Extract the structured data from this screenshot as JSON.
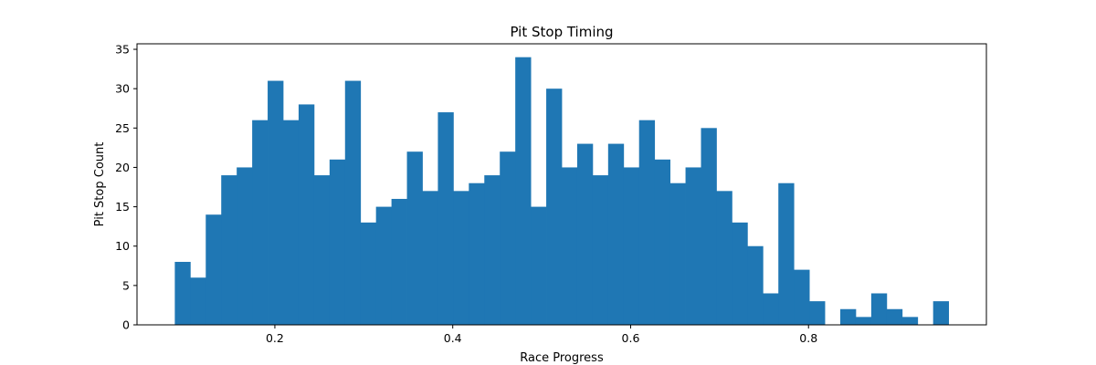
{
  "chart_data": {
    "type": "bar",
    "title": "Pit Stop Timing",
    "xlabel": "Race Progress",
    "ylabel": "Pit Stop Count",
    "bar_color": "#1f77b4",
    "xlim": [
      0.045,
      1.0
    ],
    "ylim": [
      0,
      35.7
    ],
    "grid": false,
    "legend": "none",
    "bin_start": 0.0875,
    "bin_width": 0.0174,
    "values": [
      8,
      6,
      14,
      19,
      20,
      26,
      31,
      26,
      28,
      19,
      21,
      31,
      13,
      15,
      16,
      22,
      17,
      27,
      17,
      18,
      19,
      22,
      34,
      15,
      30,
      20,
      23,
      19,
      23,
      20,
      26,
      21,
      18,
      20,
      25,
      17,
      13,
      10,
      4,
      18,
      7,
      3,
      0,
      2,
      1,
      4,
      2,
      1,
      0,
      3
    ],
    "x_ticks": [
      {
        "value": 0.2,
        "label": "0.2"
      },
      {
        "value": 0.4,
        "label": "0.4"
      },
      {
        "value": 0.6,
        "label": "0.6"
      },
      {
        "value": 0.8,
        "label": "0.8"
      }
    ],
    "y_ticks": [
      {
        "value": 0,
        "label": "0"
      },
      {
        "value": 5,
        "label": "5"
      },
      {
        "value": 10,
        "label": "10"
      },
      {
        "value": 15,
        "label": "15"
      },
      {
        "value": 20,
        "label": "20"
      },
      {
        "value": 25,
        "label": "25"
      },
      {
        "value": 30,
        "label": "30"
      },
      {
        "value": 35,
        "label": "35"
      }
    ]
  }
}
